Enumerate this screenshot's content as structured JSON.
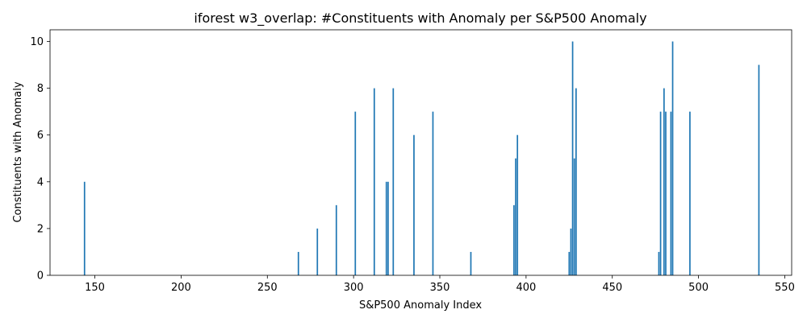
{
  "chart_data": {
    "type": "bar",
    "title": "iforest w3_overlap: #Constituents with Anomaly per S&P500 Anomaly",
    "xlabel": "S&P500 Anomaly Index",
    "ylabel": "Constituents with Anomaly",
    "xlim": [
      124,
      554
    ],
    "ylim": [
      0,
      10.5
    ],
    "xticks": [
      150,
      200,
      250,
      300,
      350,
      400,
      450,
      500,
      550
    ],
    "yticks": [
      0,
      2,
      4,
      6,
      8,
      10
    ],
    "grid": false,
    "bar_color": "#1f77b4",
    "x": [
      144,
      268,
      279,
      290,
      301,
      312,
      319,
      320,
      323,
      335,
      346,
      368,
      393,
      394,
      395,
      425,
      426,
      427,
      428,
      429,
      477,
      478,
      480,
      481,
      484,
      485,
      495,
      535
    ],
    "values": [
      4,
      1,
      2,
      3,
      7,
      8,
      4,
      4,
      8,
      6,
      7,
      1,
      3,
      5,
      6,
      1,
      2,
      10,
      5,
      8,
      1,
      7,
      8,
      7,
      7,
      10,
      7,
      9
    ]
  }
}
